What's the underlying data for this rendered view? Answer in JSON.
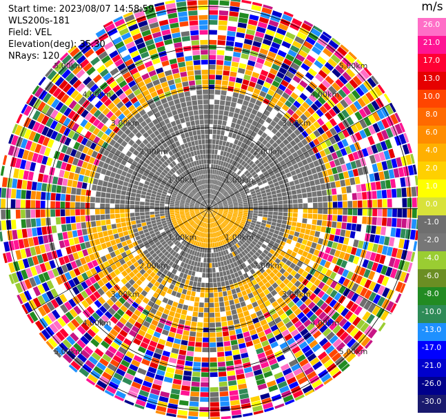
{
  "info": {
    "start_time": "Start time: 2023/08/07 14:58:59",
    "instrument": "WLS200s-181",
    "field": "Field: VEL",
    "elevation": "Elevation(deg): 35.30",
    "nrays": "NRays: 120"
  },
  "colorbar": {
    "unit": "m/s",
    "ticks": [
      "26.0",
      "21.0",
      "17.0",
      "13.0",
      "10.0",
      "8.0",
      "6.0",
      "4.0",
      "2.0",
      "1.0",
      "0.0",
      "-1.0",
      "-2.0",
      "-4.0",
      "-6.0",
      "-8.0",
      "-10.0",
      "-13.0",
      "-17.0",
      "-21.0",
      "-26.0",
      "-30.0"
    ],
    "colors": [
      "#ff6ec7",
      "#ff1493",
      "#ff0033",
      "#e60000",
      "#ff4500",
      "#ff6a00",
      "#ff8c00",
      "#ffb000",
      "#ffd000",
      "#ffff00",
      "#d8e23a",
      "#6e6e6e",
      "#777777",
      "#9acd32",
      "#6b8e23",
      "#228b22",
      "#2e8b57",
      "#1e90ff",
      "#0000ff",
      "#0000cd",
      "#00008b",
      "#1a1a6e"
    ]
  },
  "chart_data": {
    "type": "heatmap",
    "projection": "polar PPI",
    "field": "VEL",
    "units": "m/s",
    "n_rays": 120,
    "elevation_deg": 35.3,
    "range_rings_km": [
      1.0,
      2.0,
      3.0,
      4.0,
      5.0
    ],
    "range_ring_labels": [
      "1.00km",
      "2.00km",
      "3.00km",
      "4.00km",
      "5.00km"
    ],
    "value_range": [
      -30.0,
      26.0
    ],
    "structure": [
      {
        "region": "0-1 km, north half",
        "value_m_s": -2.0
      },
      {
        "region": "0-1 km, south half",
        "value_m_s": 2.0
      },
      {
        "region": "1-2 km",
        "value_m_s": 0.0
      },
      {
        "region": "2-3 km, north",
        "value_m_s": -2.0
      },
      {
        "region": "2-3 km, south",
        "value_m_s": 2.0
      },
      {
        "region": "beyond 3 km",
        "value_m_s": "noise (all values)"
      }
    ]
  }
}
